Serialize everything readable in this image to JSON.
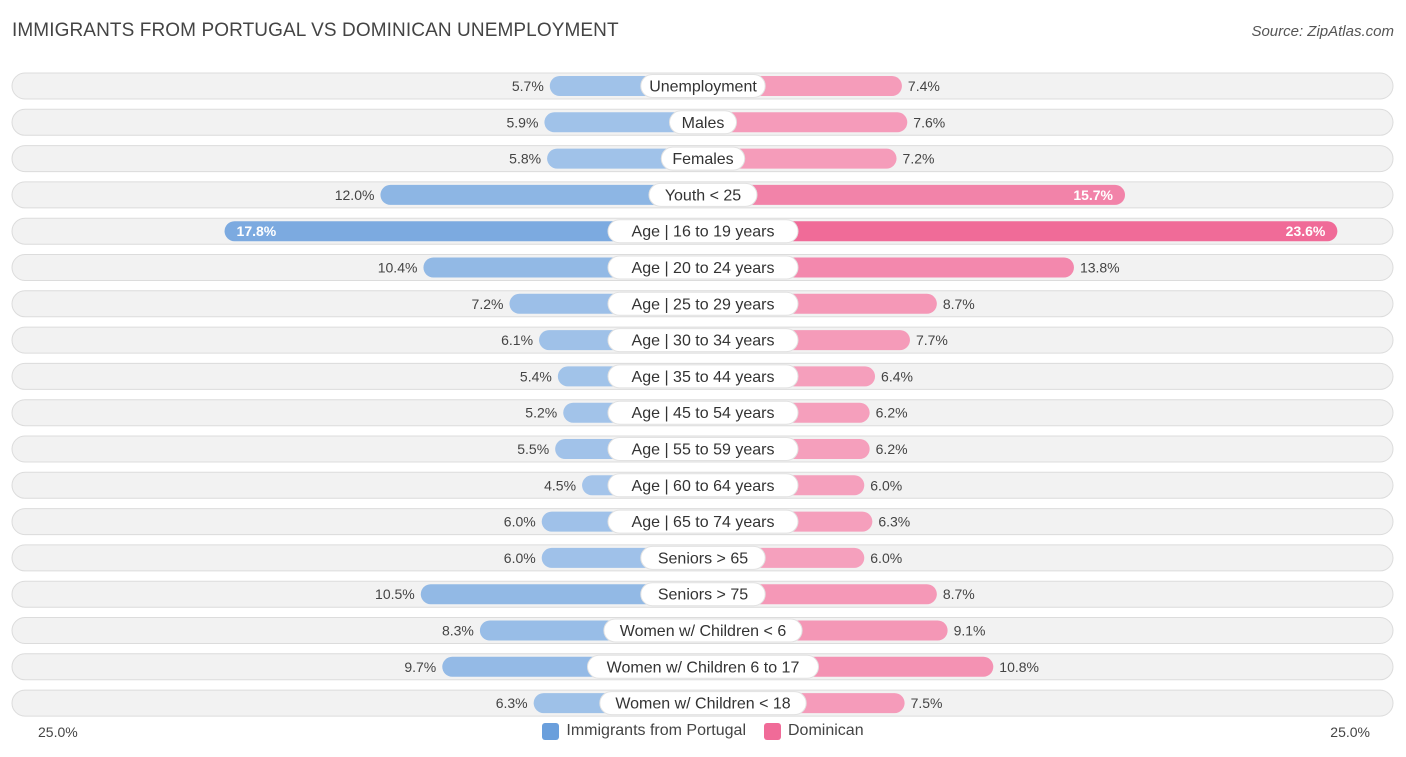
{
  "header": {
    "title": "IMMIGRANTS FROM PORTUGAL VS DOMINICAN UNEMPLOYMENT",
    "source": "Source: ZipAtlas.com"
  },
  "axis": {
    "left_label": "25.0%",
    "right_label": "25.0%"
  },
  "legend": {
    "left": {
      "label": "Immigrants from Portugal",
      "color": "#6a9fdc"
    },
    "right": {
      "label": "Dominican",
      "color": "#f06b98"
    }
  },
  "chart_data": {
    "type": "bar",
    "orientation": "horizontal-diverging",
    "title": "IMMIGRANTS FROM PORTUGAL VS DOMINICAN UNEMPLOYMENT",
    "xlim": [
      0,
      25.0
    ],
    "unit": "%",
    "categories": [
      "Unemployment",
      "Males",
      "Females",
      "Youth < 25",
      "Age | 16 to 19 years",
      "Age | 20 to 24 years",
      "Age | 25 to 29 years",
      "Age | 30 to 34 years",
      "Age | 35 to 44 years",
      "Age | 45 to 54 years",
      "Age | 55 to 59 years",
      "Age | 60 to 64 years",
      "Age | 65 to 74 years",
      "Seniors > 65",
      "Seniors > 75",
      "Women w/ Children < 6",
      "Women w/ Children 6 to 17",
      "Women w/ Children < 18"
    ],
    "series": [
      {
        "name": "Immigrants from Portugal",
        "color": "#6a9fdc",
        "values": [
          5.7,
          5.9,
          5.8,
          12.0,
          17.8,
          10.4,
          7.2,
          6.1,
          5.4,
          5.2,
          5.5,
          4.5,
          6.0,
          6.0,
          10.5,
          8.3,
          9.7,
          6.3
        ],
        "labels": [
          "5.7%",
          "5.9%",
          "5.8%",
          "12.0%",
          "17.8%",
          "10.4%",
          "7.2%",
          "6.1%",
          "5.4%",
          "5.2%",
          "5.5%",
          "4.5%",
          "6.0%",
          "6.0%",
          "10.5%",
          "8.3%",
          "9.7%",
          "6.3%"
        ]
      },
      {
        "name": "Dominican",
        "color": "#f06b98",
        "values": [
          7.4,
          7.6,
          7.2,
          15.7,
          23.6,
          13.8,
          8.7,
          7.7,
          6.4,
          6.2,
          6.2,
          6.0,
          6.3,
          6.0,
          8.7,
          9.1,
          10.8,
          7.5
        ],
        "labels": [
          "7.4%",
          "7.6%",
          "7.2%",
          "15.7%",
          "23.6%",
          "13.8%",
          "8.7%",
          "7.7%",
          "6.4%",
          "6.2%",
          "6.2%",
          "6.0%",
          "6.3%",
          "6.0%",
          "8.7%",
          "9.1%",
          "10.8%",
          "7.5%"
        ]
      }
    ]
  }
}
